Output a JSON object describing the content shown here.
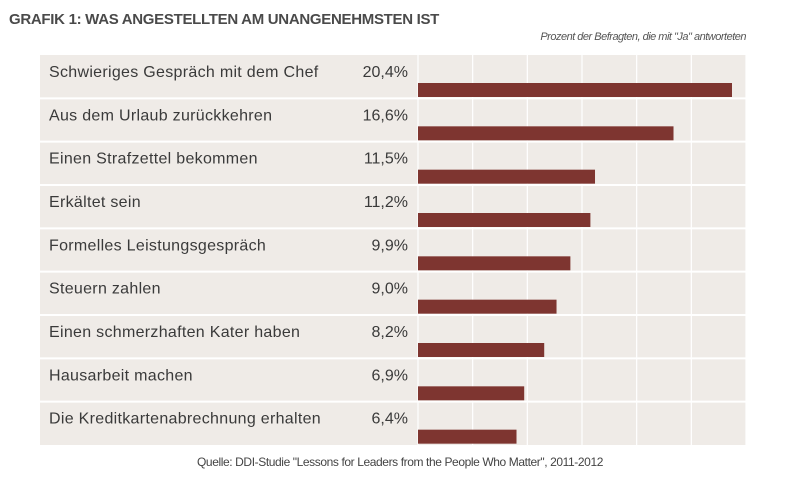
{
  "title": "GRAFIK 1: WAS ANGESTELLTEN AM UNANGENEHMSTEN IST",
  "subtitle": "Prozent der Befragten, die mit \"Ja\" antworteten",
  "source": "Quelle: DDI-Studie \"Lessons for Leaders from the People Who Matter\", 2011-2012",
  "colors": {
    "bar": "#7e3530",
    "panel": "#efebe7",
    "grid": "#ffffff",
    "text": "#3a3a3a"
  },
  "chart_data": {
    "type": "bar",
    "orientation": "horizontal",
    "xlim": [
      0,
      22
    ],
    "grid": true,
    "categories": [
      "Schwieriges Gespräch mit dem Chef",
      "Aus dem Urlaub zurückkehren",
      "Einen Strafzettel bekommen",
      "Erkältet sein",
      "Formelles Leistungsgespräch",
      "Steuern zahlen",
      "Einen schmerzhaften Kater haben",
      "Hausarbeit machen",
      "Die Kreditkartenabrechnung erhalten"
    ],
    "values": [
      20.4,
      16.6,
      11.5,
      11.2,
      9.9,
      9.0,
      8.2,
      6.9,
      6.4
    ],
    "value_labels": [
      "20,4%",
      "16,6%",
      "11,5%",
      "11,2%",
      "9,9%",
      "9,0%",
      "8,2%",
      "6,9%",
      "6,4%"
    ]
  }
}
